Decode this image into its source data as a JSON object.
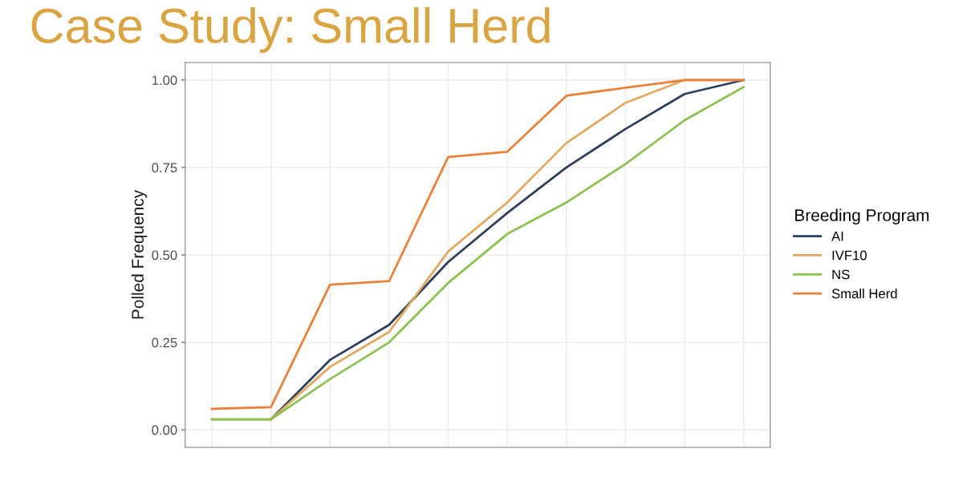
{
  "chart_data": {
    "type": "line",
    "title": "Case Study: Small Herd",
    "ylabel": "Polled Frequency",
    "legend_title": "Breeding Program",
    "categories": [
      null,
      null,
      null,
      null,
      null,
      null,
      null,
      null,
      null,
      null
    ],
    "series": [
      {
        "name": "AI",
        "color": "#2e3f5c",
        "values": [
          null,
          0.03,
          0.2,
          0.3,
          0.48,
          0.62,
          0.75,
          0.86,
          0.96,
          1.0
        ]
      },
      {
        "name": "IVF10",
        "color": "#e0a860",
        "values": [
          0.03,
          0.03,
          0.18,
          0.28,
          0.51,
          0.65,
          0.82,
          0.935,
          1.0,
          1.0
        ]
      },
      {
        "name": "NS",
        "color": "#8cc152",
        "values": [
          0.03,
          0.03,
          0.145,
          0.25,
          0.42,
          0.56,
          0.65,
          0.76,
          0.885,
          0.98
        ]
      },
      {
        "name": "Small Herd",
        "color": "#e8823a",
        "values": [
          0.06,
          0.065,
          0.415,
          0.425,
          0.78,
          0.795,
          0.955,
          0.978,
          1.0,
          1.0
        ]
      }
    ],
    "ylim": [
      -0.05,
      1.05
    ],
    "yticks": [
      {
        "value": 0,
        "label": "0.00"
      },
      {
        "value": 0.25,
        "label": "0.25"
      },
      {
        "value": 0.5,
        "label": "0.50"
      },
      {
        "value": 0.75,
        "label": "0.75"
      },
      {
        "value": 1,
        "label": "1.00"
      }
    ],
    "grid": true,
    "legend": "right",
    "tick_labels": "y",
    "marker": "none",
    "line_style": "solid"
  }
}
